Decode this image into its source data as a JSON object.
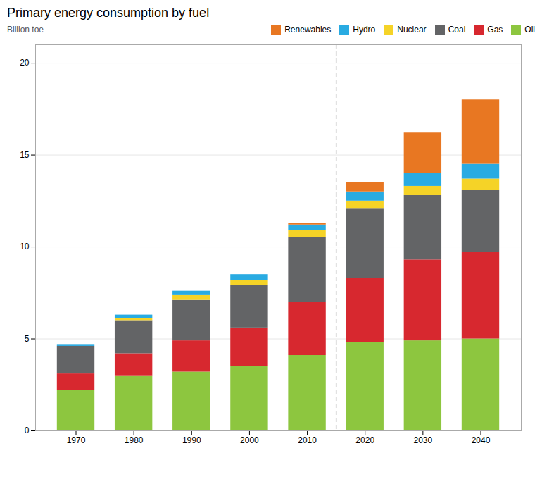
{
  "chart_data": {
    "type": "bar",
    "stacked": true,
    "title": "Primary energy consumption by fuel",
    "ylabel": "Billion toe",
    "x": [
      1970,
      1980,
      1990,
      2000,
      2010,
      2020,
      2030,
      2040
    ],
    "xlim": [
      1963,
      2047
    ],
    "xticks": [
      1970,
      1980,
      1990,
      2000,
      2010,
      2020,
      2030,
      2040
    ],
    "ylim": [
      0,
      21
    ],
    "yticks": [
      0,
      5,
      10,
      15,
      20
    ],
    "grid": true,
    "legend": "upper right",
    "vline_x": 2015,
    "series": [
      {
        "name": "Oil",
        "color": "#8dc63f",
        "values": [
          2.2,
          3.0,
          3.2,
          3.5,
          4.1,
          4.8,
          4.9,
          5.0
        ]
      },
      {
        "name": "Gas",
        "color": "#d7282f",
        "values": [
          0.9,
          1.2,
          1.7,
          2.1,
          2.9,
          3.5,
          4.4,
          4.7
        ]
      },
      {
        "name": "Coal",
        "color": "#636466",
        "values": [
          1.5,
          1.8,
          2.2,
          2.3,
          3.5,
          3.8,
          3.5,
          3.4
        ]
      },
      {
        "name": "Nuclear",
        "color": "#f5d327",
        "values": [
          0.0,
          0.1,
          0.3,
          0.3,
          0.4,
          0.4,
          0.5,
          0.6
        ]
      },
      {
        "name": "Hydro",
        "color": "#29abe2",
        "values": [
          0.1,
          0.2,
          0.2,
          0.3,
          0.3,
          0.5,
          0.7,
          0.8
        ]
      },
      {
        "name": "Renewables",
        "color": "#e87722",
        "values": [
          0.0,
          0.0,
          0.0,
          0.0,
          0.1,
          0.5,
          2.2,
          3.5
        ]
      }
    ]
  }
}
